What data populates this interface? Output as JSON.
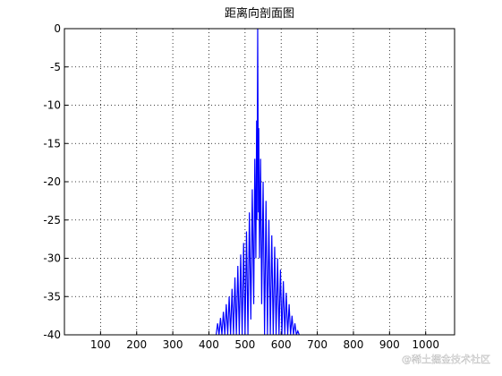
{
  "chart_data": {
    "type": "line",
    "title": "距离向剖面图",
    "x": [
      420,
      424,
      428,
      432,
      436,
      440,
      444,
      448,
      452,
      456,
      460,
      464,
      468,
      472,
      476,
      480,
      484,
      488,
      492,
      496,
      500,
      504,
      508,
      512,
      516,
      520,
      524,
      527,
      530,
      532,
      533,
      535,
      537,
      538,
      540,
      543,
      546,
      550,
      554,
      558,
      562,
      566,
      570,
      574,
      578,
      582,
      586,
      590,
      594,
      598,
      602,
      606,
      610,
      614,
      618,
      622,
      626,
      630,
      634,
      638,
      642,
      646,
      650
    ],
    "series": [
      {
        "color": "#0000ff",
        "values": [
          -40,
          -38.5,
          -40,
          -37.8,
          -40,
          -37,
          -40,
          -36,
          -40,
          -35,
          -40,
          -34,
          -40,
          -32.5,
          -40,
          -31,
          -40,
          -29.5,
          -40,
          -28,
          -40,
          -26.5,
          -40,
          -24,
          -38,
          -21,
          -36,
          -17,
          -30,
          -12,
          -25,
          0,
          -24,
          -13,
          -30,
          -17,
          -36,
          -20,
          -40,
          -22.5,
          -40,
          -25,
          -40,
          -27,
          -40,
          -28.5,
          -40,
          -30,
          -40,
          -31.5,
          -40,
          -33,
          -40,
          -34.5,
          -40,
          -36,
          -40,
          -37.5,
          -40,
          -38.5,
          -40,
          -39.5,
          -40
        ]
      }
    ],
    "xlim": [
      0,
      1080
    ],
    "ylim": [
      -40,
      0
    ],
    "xticks": [
      100,
      200,
      300,
      400,
      500,
      600,
      700,
      800,
      900,
      1000
    ],
    "yticks": [
      0,
      -5,
      -10,
      -15,
      -20,
      -25,
      -30,
      -35,
      -40
    ],
    "grid": true,
    "watermark": "@稀土掘金技术社区"
  }
}
